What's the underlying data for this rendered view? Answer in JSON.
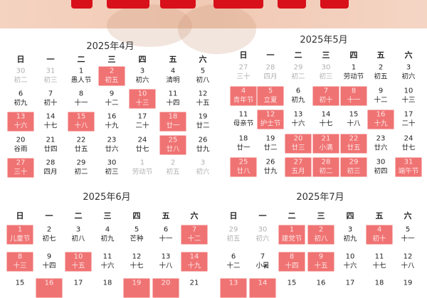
{
  "weekdays": [
    "日",
    "一",
    "二",
    "三",
    "四",
    "五",
    "六"
  ],
  "colors": {
    "highlight": "#f07373",
    "banner": "#f2cdb9",
    "title_red": "#d8101a"
  },
  "months": [
    {
      "title": "2025年4月",
      "cells": [
        {
          "d": "30",
          "l": "初二",
          "other": true
        },
        {
          "d": "31",
          "l": "初三",
          "other": true
        },
        {
          "d": "1",
          "l": "愚人节"
        },
        {
          "d": "2",
          "l": "初五",
          "hl": true
        },
        {
          "d": "3",
          "l": "初六"
        },
        {
          "d": "4",
          "l": "清明"
        },
        {
          "d": "5",
          "l": "初八"
        },
        {
          "d": "6",
          "l": "初九"
        },
        {
          "d": "7",
          "l": "初十"
        },
        {
          "d": "8",
          "l": "十一"
        },
        {
          "d": "9",
          "l": "十二"
        },
        {
          "d": "10",
          "l": "十三",
          "hl": true
        },
        {
          "d": "11",
          "l": "十四"
        },
        {
          "d": "12",
          "l": "十五"
        },
        {
          "d": "13",
          "l": "十六",
          "hl": true
        },
        {
          "d": "14",
          "l": "十七"
        },
        {
          "d": "15",
          "l": "十八",
          "hl": true
        },
        {
          "d": "16",
          "l": "十九"
        },
        {
          "d": "17",
          "l": "二十"
        },
        {
          "d": "18",
          "l": "廿一",
          "hl": true
        },
        {
          "d": "19",
          "l": "廿二"
        },
        {
          "d": "20",
          "l": "谷雨"
        },
        {
          "d": "21",
          "l": "廿四"
        },
        {
          "d": "22",
          "l": "廿五"
        },
        {
          "d": "23",
          "l": "廿六"
        },
        {
          "d": "24",
          "l": "廿七"
        },
        {
          "d": "25",
          "l": "廿八",
          "hl": true
        },
        {
          "d": "26",
          "l": "廿九"
        },
        {
          "d": "27",
          "l": "三十",
          "hl": true
        },
        {
          "d": "28",
          "l": "四月"
        },
        {
          "d": "29",
          "l": "初二"
        },
        {
          "d": "30",
          "l": "初三"
        },
        {
          "d": "1",
          "l": "劳动节",
          "other": true
        },
        {
          "d": "2",
          "l": "初五",
          "other": true
        },
        {
          "d": "3",
          "l": "初六",
          "other": true
        }
      ]
    },
    {
      "title": "2025年5月",
      "cells": [
        {
          "d": "27",
          "l": "三十",
          "other": true
        },
        {
          "d": "28",
          "l": "四月",
          "other": true
        },
        {
          "d": "29",
          "l": "初二",
          "other": true
        },
        {
          "d": "30",
          "l": "初三",
          "other": true
        },
        {
          "d": "1",
          "l": "劳动节"
        },
        {
          "d": "2",
          "l": "初五"
        },
        {
          "d": "3",
          "l": "初六"
        },
        {
          "d": "4",
          "l": "青年节",
          "hl": true
        },
        {
          "d": "5",
          "l": "立夏",
          "hl": true
        },
        {
          "d": "6",
          "l": "初九"
        },
        {
          "d": "7",
          "l": "初十",
          "hl": true
        },
        {
          "d": "8",
          "l": "十一",
          "hl": true
        },
        {
          "d": "9",
          "l": "十二"
        },
        {
          "d": "10",
          "l": "十三"
        },
        {
          "d": "11",
          "l": "母亲节"
        },
        {
          "d": "12",
          "l": "护士节",
          "hl": true
        },
        {
          "d": "13",
          "l": "十六"
        },
        {
          "d": "14",
          "l": "十七"
        },
        {
          "d": "15",
          "l": "十八"
        },
        {
          "d": "16",
          "l": "十九",
          "hl": true
        },
        {
          "d": "17",
          "l": "二十"
        },
        {
          "d": "18",
          "l": "廿一"
        },
        {
          "d": "19",
          "l": "廿二"
        },
        {
          "d": "20",
          "l": "廿三",
          "hl": true
        },
        {
          "d": "21",
          "l": "小满",
          "hl": true
        },
        {
          "d": "22",
          "l": "廿五",
          "hl": true
        },
        {
          "d": "23",
          "l": "廿六"
        },
        {
          "d": "24",
          "l": "廿七"
        },
        {
          "d": "25",
          "l": "廿八",
          "hl": true
        },
        {
          "d": "26",
          "l": "廿九"
        },
        {
          "d": "27",
          "l": "五月",
          "hl": true
        },
        {
          "d": "28",
          "l": "初二",
          "hl": true
        },
        {
          "d": "29",
          "l": "初三",
          "hl": true
        },
        {
          "d": "30",
          "l": "初四"
        },
        {
          "d": "31",
          "l": "端午节",
          "hl": true
        }
      ]
    },
    {
      "title": "2025年6月",
      "cells": [
        {
          "d": "1",
          "l": "儿童节",
          "hl": true
        },
        {
          "d": "2",
          "l": "初七"
        },
        {
          "d": "3",
          "l": "初八"
        },
        {
          "d": "4",
          "l": "初九"
        },
        {
          "d": "5",
          "l": "芒种"
        },
        {
          "d": "6",
          "l": "十一"
        },
        {
          "d": "7",
          "l": "十二",
          "hl": true
        },
        {
          "d": "8",
          "l": "十三",
          "hl": true
        },
        {
          "d": "9",
          "l": "十四"
        },
        {
          "d": "10",
          "l": "十五",
          "hl": true
        },
        {
          "d": "11",
          "l": "十六"
        },
        {
          "d": "12",
          "l": "十七"
        },
        {
          "d": "13",
          "l": "十八"
        },
        {
          "d": "14",
          "l": "十九",
          "hl": true
        },
        {
          "d": "15"
        },
        {
          "d": "16",
          "hl": true
        },
        {
          "d": "17"
        },
        {
          "d": "18"
        },
        {
          "d": "19",
          "hl": true
        },
        {
          "d": "20",
          "hl": true
        },
        {
          "d": "21"
        }
      ]
    },
    {
      "title": "2025年7月",
      "cells": [
        {
          "d": "29",
          "l": "初五",
          "other": true
        },
        {
          "d": "30",
          "l": "初六",
          "other": true
        },
        {
          "d": "1",
          "l": "建党节",
          "hl": true
        },
        {
          "d": "2",
          "l": "初八",
          "hl": true
        },
        {
          "d": "3",
          "l": "初九"
        },
        {
          "d": "4",
          "l": "初十",
          "hl": true
        },
        {
          "d": "5",
          "l": "十一"
        },
        {
          "d": "6",
          "l": "十二"
        },
        {
          "d": "7",
          "l": "小暑"
        },
        {
          "d": "8",
          "l": "十四",
          "hl": true
        },
        {
          "d": "9",
          "l": "十五",
          "hl": true
        },
        {
          "d": "10",
          "l": "十六"
        },
        {
          "d": "11",
          "l": "十七"
        },
        {
          "d": "12",
          "l": "十八"
        },
        {
          "d": "13",
          "hl": true
        },
        {
          "d": "14",
          "hl": true
        },
        {
          "d": "15"
        },
        {
          "d": "16"
        },
        {
          "d": "17"
        },
        {
          "d": "18"
        },
        {
          "d": "19"
        }
      ]
    }
  ]
}
